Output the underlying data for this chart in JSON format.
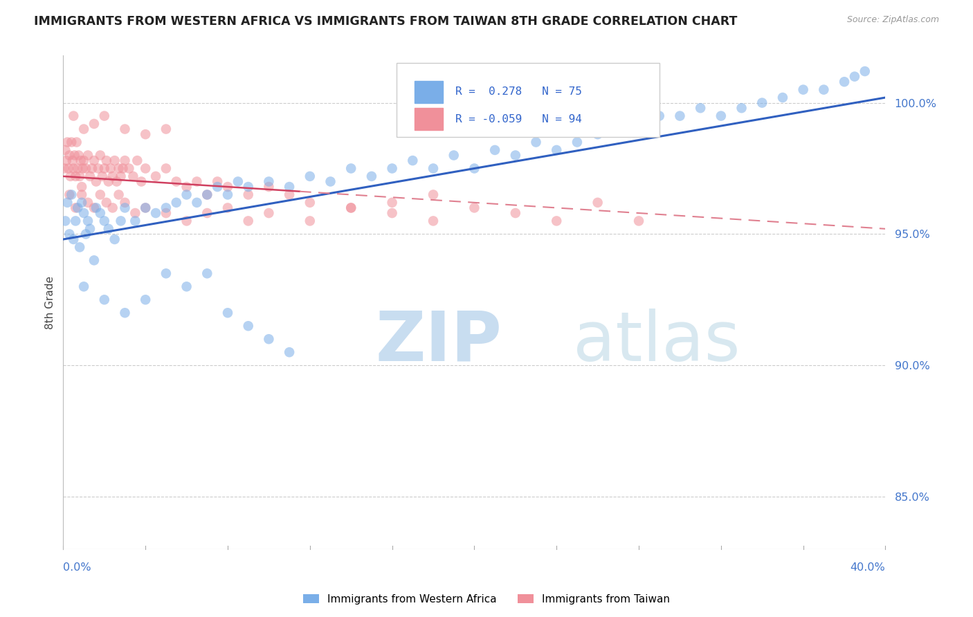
{
  "title": "IMMIGRANTS FROM WESTERN AFRICA VS IMMIGRANTS FROM TAIWAN 8TH GRADE CORRELATION CHART",
  "source": "Source: ZipAtlas.com",
  "ylabel": "8th Grade",
  "y_ticks": [
    85.0,
    90.0,
    95.0,
    100.0
  ],
  "y_tick_labels": [
    "85.0%",
    "90.0%",
    "95.0%",
    "100.0%"
  ],
  "x_min": 0.0,
  "x_max": 40.0,
  "y_min": 83.0,
  "y_max": 101.8,
  "R_blue": 0.278,
  "N_blue": 75,
  "R_pink": -0.059,
  "N_pink": 94,
  "blue_color": "#7aaee8",
  "pink_color": "#f0909a",
  "trend_blue_color": "#3060c0",
  "trend_pink_color_solid": "#d04060",
  "trend_pink_color_dash": "#e08090",
  "watermark_color": "#d0e4f0",
  "title_color": "#222222",
  "axis_label_color": "#4477cc",
  "legend_R_color": "#3366cc",
  "blue_trend_y0": 94.8,
  "blue_trend_y1": 100.2,
  "pink_trend_y0": 97.2,
  "pink_trend_y1": 95.2,
  "pink_solid_x1": 11.5,
  "blue_x": [
    0.1,
    0.2,
    0.3,
    0.4,
    0.5,
    0.6,
    0.7,
    0.8,
    0.9,
    1.0,
    1.1,
    1.2,
    1.3,
    1.5,
    1.6,
    1.8,
    2.0,
    2.2,
    2.5,
    2.8,
    3.0,
    3.5,
    4.0,
    4.5,
    5.0,
    5.5,
    6.0,
    6.5,
    7.0,
    7.5,
    8.0,
    8.5,
    9.0,
    10.0,
    11.0,
    12.0,
    13.0,
    14.0,
    15.0,
    16.0,
    17.0,
    18.0,
    19.0,
    20.0,
    21.0,
    22.0,
    23.0,
    24.0,
    25.0,
    26.0,
    27.0,
    28.0,
    29.0,
    30.0,
    31.0,
    32.0,
    33.0,
    34.0,
    35.0,
    36.0,
    37.0,
    38.0,
    38.5,
    39.0,
    1.0,
    2.0,
    3.0,
    4.0,
    5.0,
    6.0,
    7.0,
    8.0,
    9.0,
    10.0,
    11.0
  ],
  "blue_y": [
    95.5,
    96.2,
    95.0,
    96.5,
    94.8,
    95.5,
    96.0,
    94.5,
    96.2,
    95.8,
    95.0,
    95.5,
    95.2,
    94.0,
    96.0,
    95.8,
    95.5,
    95.2,
    94.8,
    95.5,
    96.0,
    95.5,
    96.0,
    95.8,
    96.0,
    96.2,
    96.5,
    96.2,
    96.5,
    96.8,
    96.5,
    97.0,
    96.8,
    97.0,
    96.8,
    97.2,
    97.0,
    97.5,
    97.2,
    97.5,
    97.8,
    97.5,
    98.0,
    97.5,
    98.2,
    98.0,
    98.5,
    98.2,
    98.5,
    98.8,
    99.0,
    99.2,
    99.5,
    99.5,
    99.8,
    99.5,
    99.8,
    100.0,
    100.2,
    100.5,
    100.5,
    100.8,
    101.0,
    101.2,
    93.0,
    92.5,
    92.0,
    92.5,
    93.5,
    93.0,
    93.5,
    92.0,
    91.5,
    91.0,
    90.5
  ],
  "pink_x": [
    0.05,
    0.1,
    0.15,
    0.2,
    0.25,
    0.3,
    0.35,
    0.4,
    0.45,
    0.5,
    0.55,
    0.6,
    0.65,
    0.7,
    0.75,
    0.8,
    0.85,
    0.9,
    0.95,
    1.0,
    1.1,
    1.2,
    1.3,
    1.4,
    1.5,
    1.6,
    1.7,
    1.8,
    1.9,
    2.0,
    2.1,
    2.2,
    2.3,
    2.4,
    2.5,
    2.6,
    2.7,
    2.8,
    2.9,
    3.0,
    3.2,
    3.4,
    3.6,
    3.8,
    4.0,
    4.5,
    5.0,
    5.5,
    6.0,
    6.5,
    7.0,
    7.5,
    8.0,
    9.0,
    10.0,
    11.0,
    12.0,
    14.0,
    16.0,
    18.0,
    0.3,
    0.6,
    0.9,
    1.2,
    1.5,
    1.8,
    2.1,
    2.4,
    2.7,
    3.0,
    3.5,
    4.0,
    5.0,
    6.0,
    7.0,
    8.0,
    9.0,
    10.0,
    12.0,
    14.0,
    16.0,
    18.0,
    20.0,
    22.0,
    24.0,
    26.0,
    28.0,
    0.5,
    1.0,
    1.5,
    2.0,
    3.0,
    4.0,
    5.0
  ],
  "pink_y": [
    97.5,
    98.2,
    97.8,
    98.5,
    97.5,
    98.0,
    97.2,
    98.5,
    97.8,
    97.5,
    98.0,
    97.2,
    98.5,
    97.5,
    98.0,
    97.2,
    97.8,
    96.8,
    97.5,
    97.8,
    97.5,
    98.0,
    97.2,
    97.5,
    97.8,
    97.0,
    97.5,
    98.0,
    97.2,
    97.5,
    97.8,
    97.0,
    97.5,
    97.2,
    97.8,
    97.0,
    97.5,
    97.2,
    97.5,
    97.8,
    97.5,
    97.2,
    97.8,
    97.0,
    97.5,
    97.2,
    97.5,
    97.0,
    96.8,
    97.0,
    96.5,
    97.0,
    96.8,
    96.5,
    96.8,
    96.5,
    96.2,
    96.0,
    96.2,
    96.5,
    96.5,
    96.0,
    96.5,
    96.2,
    96.0,
    96.5,
    96.2,
    96.0,
    96.5,
    96.2,
    95.8,
    96.0,
    95.8,
    95.5,
    95.8,
    96.0,
    95.5,
    95.8,
    95.5,
    96.0,
    95.8,
    95.5,
    96.0,
    95.8,
    95.5,
    96.2,
    95.5,
    99.5,
    99.0,
    99.2,
    99.5,
    99.0,
    98.8,
    99.0
  ]
}
